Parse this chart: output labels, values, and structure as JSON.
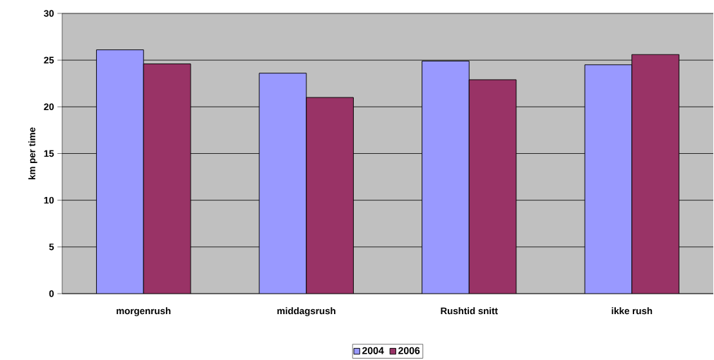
{
  "chart_data": {
    "type": "bar",
    "ylabel": "km per time",
    "categories": [
      "morgenrush",
      "middagsrush",
      "Rushtid snitt",
      "ikke rush"
    ],
    "series": [
      {
        "name": "2004",
        "color": "#9999ff",
        "values": [
          26.1,
          23.6,
          24.9,
          24.5
        ]
      },
      {
        "name": "2006",
        "color": "#993366",
        "values": [
          24.6,
          21.0,
          22.9,
          25.6
        ]
      }
    ],
    "ylim": [
      0,
      30
    ],
    "yticks": [
      0,
      5,
      10,
      15,
      20,
      25,
      30
    ],
    "grid": "y",
    "legend": "bottom"
  }
}
